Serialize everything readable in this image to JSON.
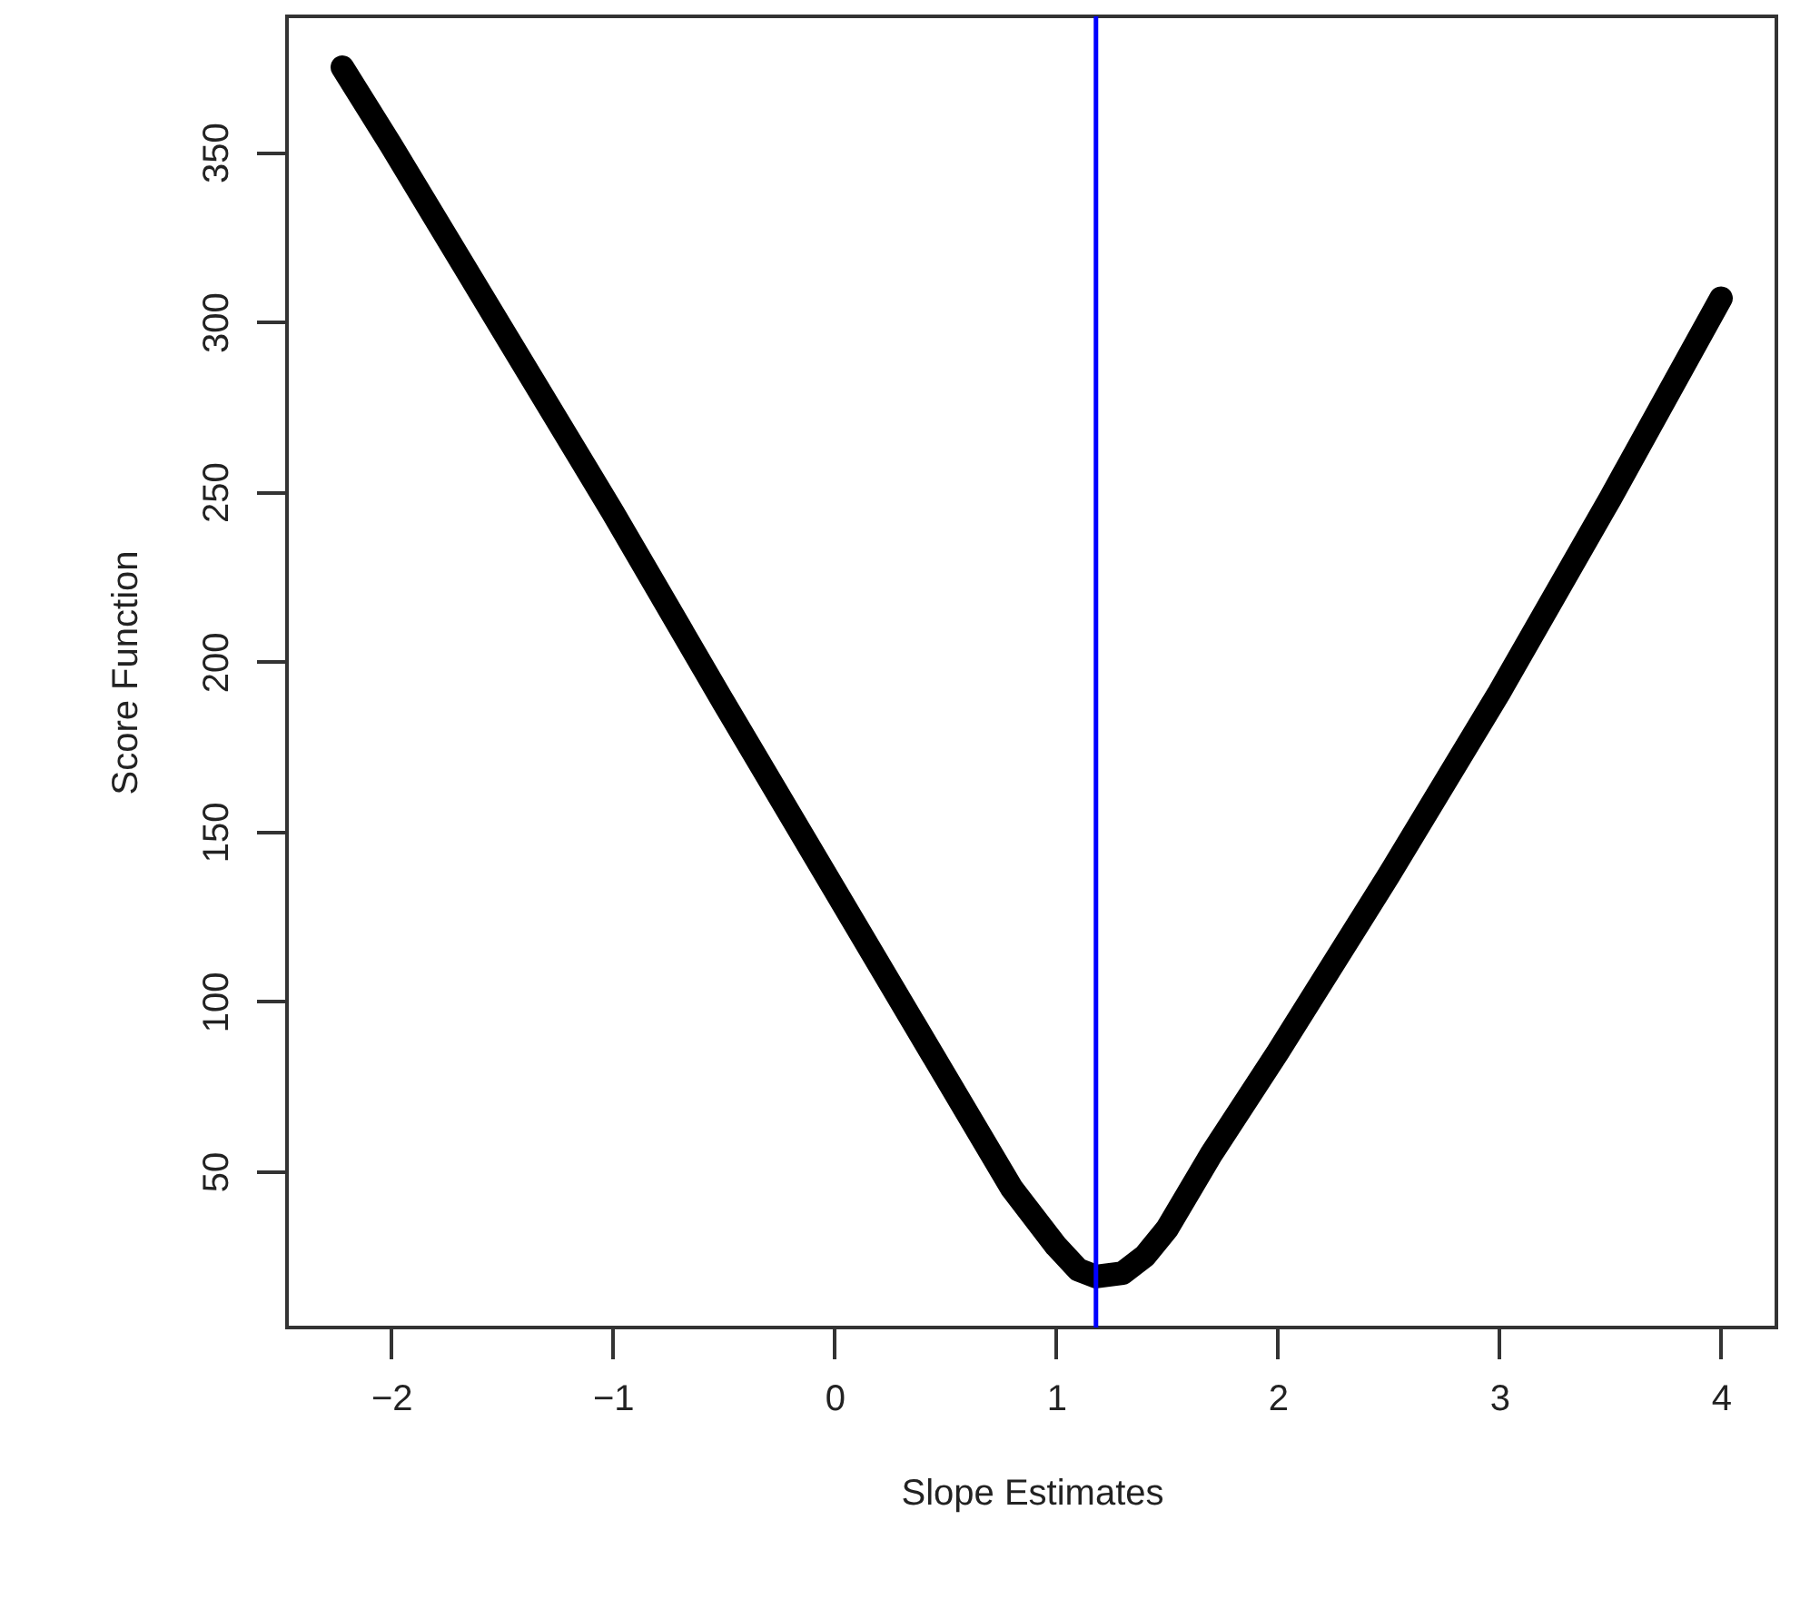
{
  "chart_data": {
    "type": "line",
    "xlabel": "Slope Estimates",
    "ylabel": "Score Function",
    "x": [
      -2.22,
      -2,
      -1.5,
      -1,
      -0.5,
      0,
      0.5,
      0.8,
      1.0,
      1.1,
      1.18,
      1.3,
      1.4,
      1.5,
      1.7,
      2,
      2.5,
      3,
      3.5,
      4
    ],
    "series": [
      {
        "color": "#000000",
        "values": [
          375,
          352,
          298,
          244,
          188,
          133,
          78,
          45,
          28,
          21,
          19,
          20,
          25,
          33,
          55,
          85,
          137,
          191,
          248,
          307
        ]
      }
    ],
    "xlim": [
      -2.47,
      4.25
    ],
    "ylim": [
      4,
      390
    ],
    "xticks": [
      -2,
      -1,
      0,
      1,
      2,
      3,
      4
    ],
    "yticks": [
      50,
      100,
      150,
      200,
      250,
      300,
      350
    ],
    "ref_lines": [
      {
        "axis": "x",
        "value": 1.18,
        "color": "#0000ff"
      }
    ],
    "grid": false,
    "marker": "none",
    "line_style": "solid"
  }
}
